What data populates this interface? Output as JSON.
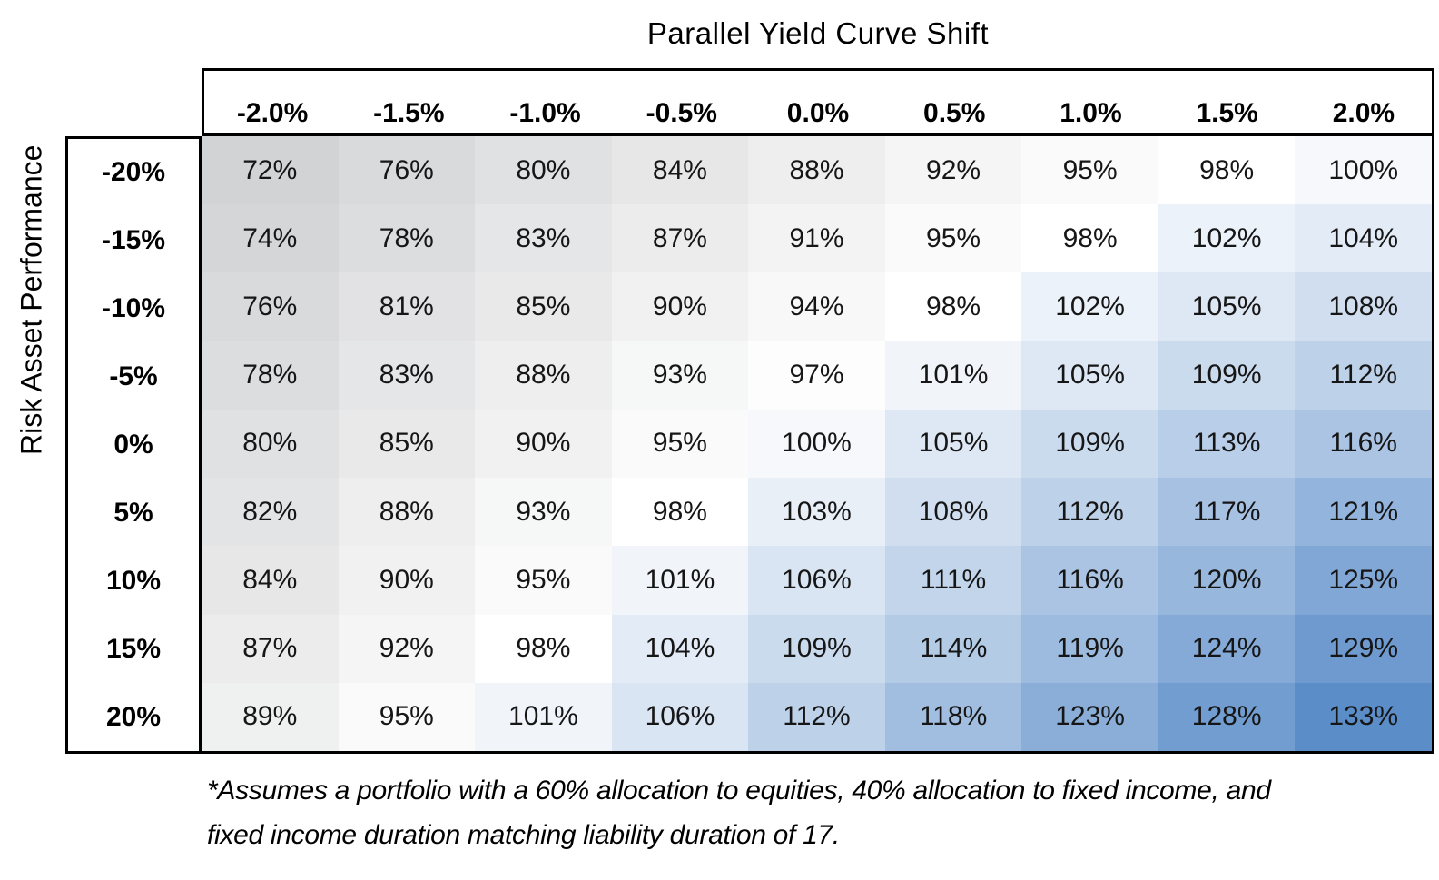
{
  "chart_data": {
    "type": "heatmap",
    "title": "Parallel Yield Curve Shift",
    "ylabel": "Risk Asset Performance",
    "columns": [
      "-2.0%",
      "-1.5%",
      "-1.0%",
      "-0.5%",
      "0.0%",
      "0.5%",
      "1.0%",
      "1.5%",
      "2.0%"
    ],
    "rows": [
      "-20%",
      "-15%",
      "-10%",
      "-5%",
      "0%",
      "5%",
      "10%",
      "15%",
      "20%"
    ],
    "values": [
      [
        72,
        76,
        80,
        84,
        88,
        92,
        95,
        98,
        100
      ],
      [
        74,
        78,
        83,
        87,
        91,
        95,
        98,
        102,
        104
      ],
      [
        76,
        81,
        85,
        90,
        94,
        98,
        102,
        105,
        108
      ],
      [
        78,
        83,
        88,
        93,
        97,
        101,
        105,
        109,
        112
      ],
      [
        80,
        85,
        90,
        95,
        100,
        105,
        109,
        113,
        116
      ],
      [
        82,
        88,
        93,
        98,
        103,
        108,
        112,
        117,
        121
      ],
      [
        84,
        90,
        95,
        101,
        106,
        111,
        116,
        120,
        125
      ],
      [
        87,
        92,
        98,
        104,
        109,
        114,
        119,
        124,
        129
      ],
      [
        89,
        95,
        101,
        106,
        112,
        118,
        123,
        128,
        133
      ]
    ],
    "value_suffix": "%",
    "grid_lines": false,
    "legend": "none",
    "color_scale": {
      "min_value": 72,
      "mid_value": 98,
      "max_value": 133,
      "min_color": "#D2D3D5",
      "mid_color": "#FFFFFF",
      "max_color": "#5B8DC9"
    }
  },
  "footnote_lines": {
    "line1": "*Assumes a portfolio with a 60% allocation to equities, 40% allocation to fixed income, and",
    "line2": "fixed income duration matching liability duration of 17."
  }
}
